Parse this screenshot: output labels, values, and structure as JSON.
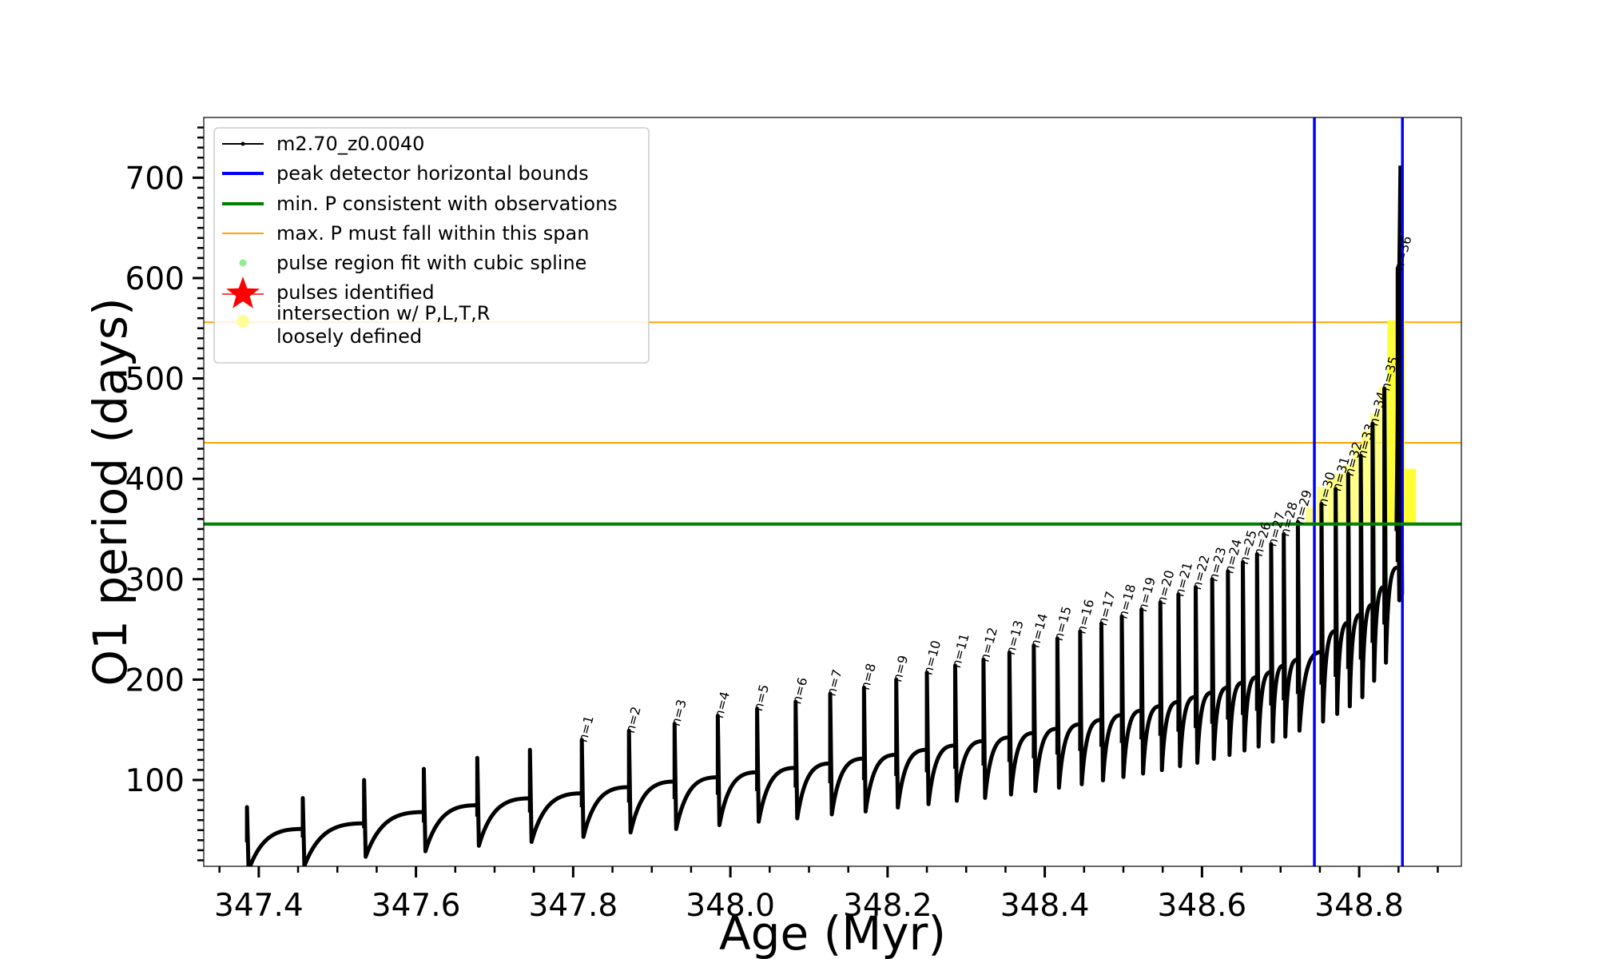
{
  "chart_data": {
    "type": "line",
    "xlabel": "Age (Myr)",
    "ylabel": "O1 period (days)",
    "xlim": [
      347.33,
      348.93
    ],
    "ylim": [
      14,
      760
    ],
    "x_ticks": [
      347.4,
      347.6,
      347.8,
      348.0,
      348.2,
      348.4,
      348.6,
      348.8
    ],
    "x_tick_labels": [
      "347.4",
      "347.6",
      "347.8",
      "348.0",
      "348.2",
      "348.4",
      "348.6",
      "348.8"
    ],
    "y_ticks": [
      100,
      200,
      300,
      400,
      500,
      600,
      700
    ],
    "y_tick_labels": [
      "100",
      "200",
      "300",
      "400",
      "500",
      "600",
      "700"
    ],
    "legend_position": "top-left",
    "grid": false,
    "legend": [
      {
        "label": "m2.70_z0.0040",
        "marker": "line-dot",
        "color": "#000000"
      },
      {
        "label": "peak detector horizontal bounds",
        "marker": "line",
        "color": "#0000ff"
      },
      {
        "label": "min. P consistent with observations",
        "marker": "line",
        "color": "#008000"
      },
      {
        "label": "max. P must fall within this span",
        "marker": "thin-line",
        "color": "#ffa500"
      },
      {
        "label": "pulse region fit with cubic spline",
        "marker": "dot",
        "color": "#90ee90"
      },
      {
        "label": "pulses identified",
        "marker": "star",
        "color": "#ff0000"
      },
      {
        "label": "intersection w/ P,L,T,R",
        "label2": "loosely defined",
        "marker": "dot",
        "color": "#ffff99"
      }
    ],
    "vertical_lines": {
      "label": "peak detector horizontal bounds",
      "x": [
        348.743,
        348.855
      ],
      "color": "#0000ff"
    },
    "min_period_line": {
      "label": "min. P consistent with observations",
      "y": 355,
      "color": "#008000"
    },
    "max_period_span": {
      "label": "max. P must fall within this span",
      "y": [
        436,
        556
      ],
      "color": "#ffa500"
    },
    "pre_pulses": [
      {
        "x": 347.385,
        "peak": 73
      },
      {
        "x": 347.456,
        "peak": 82
      },
      {
        "x": 347.534,
        "peak": 100
      },
      {
        "x": 347.61,
        "peak": 111
      },
      {
        "x": 347.678,
        "peak": 122
      },
      {
        "x": 347.745,
        "peak": 130
      }
    ],
    "pulses": [
      {
        "n": "n=1",
        "x": 347.811,
        "peak": 140
      },
      {
        "n": "n=2",
        "x": 347.871,
        "peak": 149
      },
      {
        "n": "n=3",
        "x": 347.929,
        "peak": 156
      },
      {
        "n": "n=4",
        "x": 347.984,
        "peak": 164
      },
      {
        "n": "n=5",
        "x": 348.034,
        "peak": 171
      },
      {
        "n": "n=6",
        "x": 348.083,
        "peak": 178
      },
      {
        "n": "n=7",
        "x": 348.127,
        "peak": 186
      },
      {
        "n": "n=8",
        "x": 348.17,
        "peak": 192
      },
      {
        "n": "n=9",
        "x": 348.211,
        "peak": 200
      },
      {
        "n": "n=10",
        "x": 348.25,
        "peak": 207
      },
      {
        "n": "n=11",
        "x": 348.286,
        "peak": 214
      },
      {
        "n": "n=12",
        "x": 348.322,
        "peak": 220
      },
      {
        "n": "n=13",
        "x": 348.355,
        "peak": 227
      },
      {
        "n": "n=14",
        "x": 348.386,
        "peak": 234
      },
      {
        "n": "n=15",
        "x": 348.416,
        "peak": 241
      },
      {
        "n": "n=16",
        "x": 348.445,
        "peak": 248
      },
      {
        "n": "n=17",
        "x": 348.472,
        "peak": 256
      },
      {
        "n": "n=18",
        "x": 348.498,
        "peak": 263
      },
      {
        "n": "n=19",
        "x": 348.523,
        "peak": 270
      },
      {
        "n": "n=20",
        "x": 348.547,
        "peak": 277
      },
      {
        "n": "n=21",
        "x": 348.57,
        "peak": 285
      },
      {
        "n": "n=22",
        "x": 348.592,
        "peak": 292
      },
      {
        "n": "n=23",
        "x": 348.613,
        "peak": 300
      },
      {
        "n": "n=24",
        "x": 348.633,
        "peak": 308
      },
      {
        "n": "n=25",
        "x": 348.652,
        "peak": 317
      },
      {
        "n": "n=26",
        "x": 348.67,
        "peak": 325
      },
      {
        "n": "n=27",
        "x": 348.688,
        "peak": 335
      },
      {
        "n": "n=28",
        "x": 348.704,
        "peak": 345
      },
      {
        "n": "n=29",
        "x": 348.722,
        "peak": 357
      },
      {
        "n": "n=30",
        "x": 348.752,
        "peak": 375
      },
      {
        "n": "n=31",
        "x": 348.77,
        "peak": 390
      },
      {
        "n": "n=32",
        "x": 348.786,
        "peak": 405
      },
      {
        "n": "n=33",
        "x": 348.802,
        "peak": 423
      },
      {
        "n": "n=34",
        "x": 348.817,
        "peak": 455
      },
      {
        "n": "n=35",
        "x": 348.832,
        "peak": 490
      },
      {
        "n": "n=36",
        "x": 348.849,
        "peak": 610
      }
    ],
    "final_peak": {
      "x": 348.852,
      "peak": 712
    }
  }
}
